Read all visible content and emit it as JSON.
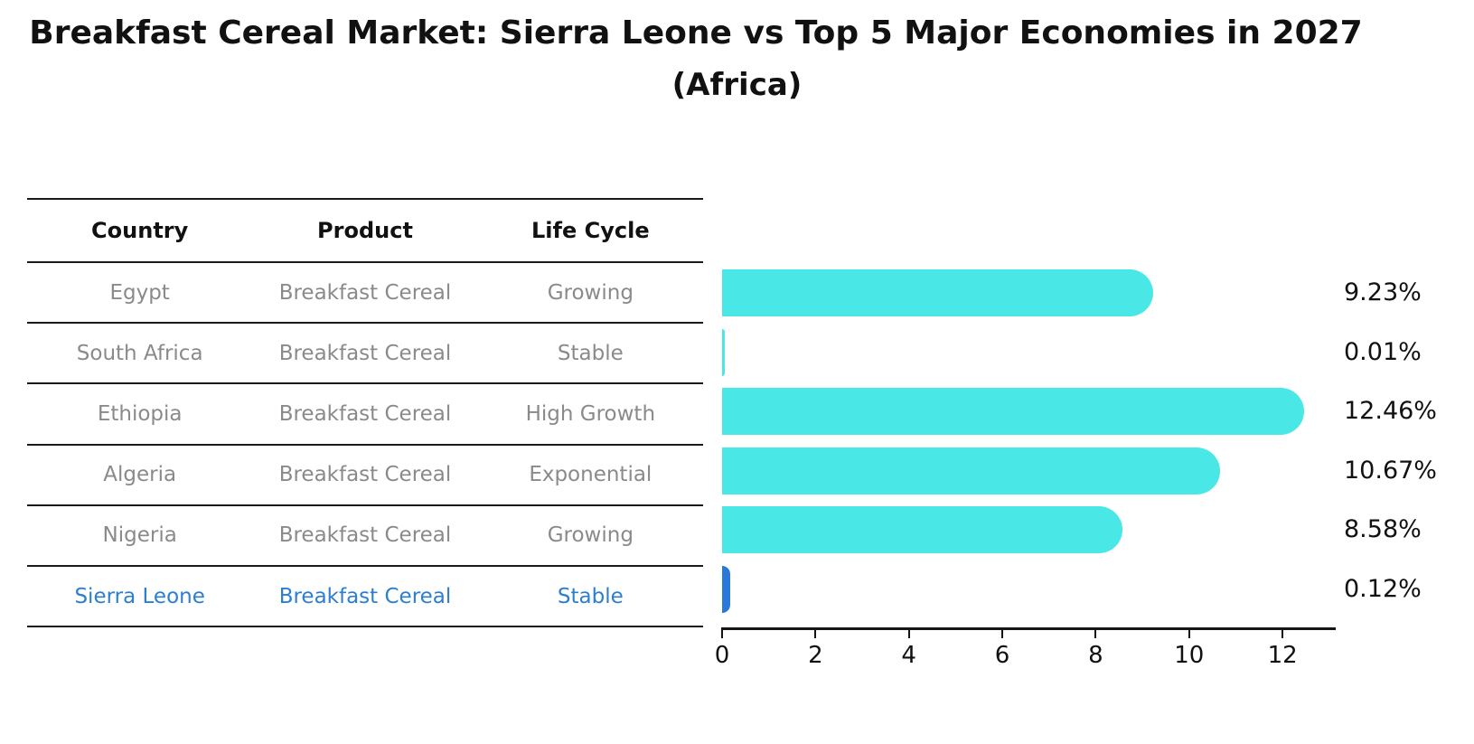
{
  "title": "Breakfast Cereal Market: Sierra Leone vs Top 5 Major Economies in 2027",
  "subtitle": "(Africa)",
  "table": {
    "headers": [
      "Country",
      "Product",
      "Life Cycle"
    ],
    "rows": [
      [
        "Egypt",
        "Breakfast Cereal",
        "Growing"
      ],
      [
        "South Africa",
        "Breakfast Cereal",
        "Stable"
      ],
      [
        "Ethiopia",
        "Breakfast Cereal",
        "High Growth"
      ],
      [
        "Algeria",
        "Breakfast Cereal",
        "Exponential"
      ],
      [
        "Nigeria",
        "Breakfast Cereal",
        "Growing"
      ],
      [
        "Sierra Leone",
        "Breakfast Cereal",
        "Stable"
      ]
    ],
    "highlight_row_index": 5
  },
  "chart_data": {
    "type": "bar",
    "orientation": "horizontal",
    "title": "Breakfast Cereal Market: Sierra Leone vs Top 5 Major Economies in 2027 (Africa)",
    "categories": [
      "Egypt",
      "South Africa",
      "Ethiopia",
      "Algeria",
      "Nigeria",
      "Sierra Leone"
    ],
    "values": [
      9.23,
      0.01,
      12.46,
      10.67,
      8.58,
      0.12
    ],
    "value_labels": [
      "9.23%",
      "0.01%",
      "12.46%",
      "10.67%",
      "8.58%",
      "0.12%"
    ],
    "x_ticks": [
      "0",
      "2",
      "4",
      "6",
      "8",
      "10",
      "12"
    ],
    "xlim": [
      0,
      13.12
    ],
    "grid": false,
    "legend": false,
    "highlight_index": 5,
    "bar_color": "#49E7E5",
    "highlight_bar_color": "#2A79DA"
  },
  "colors": {
    "text_primary": "#111111",
    "text_muted": "#8A8A8A",
    "highlight_text": "#2C7FD0",
    "bar_cyan": "#49E7E5",
    "bar_blue": "#2A79DA",
    "line": "#1A1A1A",
    "background": "#FFFFFF"
  }
}
